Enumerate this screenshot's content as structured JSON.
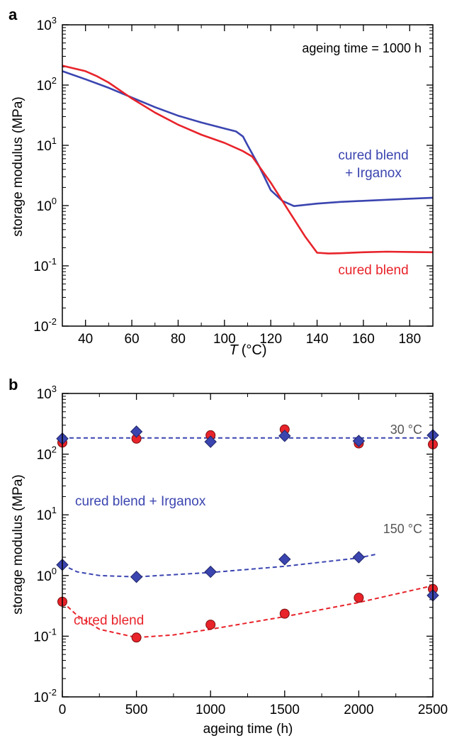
{
  "chart_data": [
    {
      "type": "line",
      "panel_label": "a",
      "xlabel_italic": "T",
      "xlabel_unit": "(°C)",
      "ylabel": "storage modulus (MPa)",
      "annotation": "ageing time = 1000 h",
      "xlim": [
        30,
        190
      ],
      "ylim": [
        0.01,
        1000
      ],
      "yscale": "log",
      "x_ticks": [
        40,
        60,
        80,
        100,
        120,
        140,
        160,
        180
      ],
      "y_ticks": [
        0.01,
        0.1,
        1,
        10,
        100,
        1000
      ],
      "y_tick_labels": [
        {
          "base": "10",
          "exp": "-2"
        },
        {
          "base": "10",
          "exp": "-1"
        },
        {
          "base": "10",
          "exp": "0"
        },
        {
          "base": "10",
          "exp": "1"
        },
        {
          "base": "10",
          "exp": "2"
        },
        {
          "base": "10",
          "exp": "3"
        }
      ],
      "series": [
        {
          "name": "cured blend\n+ Irganox",
          "label_lines": [
            "cured blend",
            "+ Irganox"
          ],
          "color": "#3b45b0",
          "x": [
            30,
            40,
            50,
            60,
            70,
            80,
            90,
            100,
            105,
            108,
            110,
            115,
            120,
            125,
            130,
            140,
            150,
            160,
            170,
            180,
            190
          ],
          "y": [
            170,
            125,
            90,
            62,
            43,
            31,
            24,
            19,
            17,
            14,
            10,
            4.5,
            1.8,
            1.2,
            0.98,
            1.08,
            1.15,
            1.2,
            1.25,
            1.3,
            1.35
          ]
        },
        {
          "name": "cured blend",
          "label_lines": [
            "cured blend"
          ],
          "color": "#e8232a",
          "x": [
            30,
            40,
            45,
            50,
            60,
            70,
            80,
            90,
            100,
            108,
            112,
            120,
            125,
            130,
            135,
            140,
            145,
            150,
            160,
            170,
            180,
            190
          ],
          "y": [
            210,
            170,
            140,
            110,
            60,
            35,
            22,
            15,
            11,
            8,
            6.5,
            2.4,
            1.2,
            0.6,
            0.3,
            0.165,
            0.16,
            0.162,
            0.168,
            0.172,
            0.17,
            0.168
          ]
        }
      ]
    },
    {
      "type": "scatter",
      "panel_label": "b",
      "xlabel": "ageing time (h)",
      "ylabel": "storage modulus (MPa)",
      "xlim": [
        0,
        2500
      ],
      "ylim": [
        0.01,
        1000
      ],
      "yscale": "log",
      "x_ticks": [
        0,
        500,
        1000,
        1500,
        2000,
        2500
      ],
      "y_ticks": [
        0.01,
        0.1,
        1,
        10,
        100,
        1000
      ],
      "y_tick_labels": [
        {
          "base": "10",
          "exp": "-2"
        },
        {
          "base": "10",
          "exp": "-1"
        },
        {
          "base": "10",
          "exp": "0"
        },
        {
          "base": "10",
          "exp": "1"
        },
        {
          "base": "10",
          "exp": "2"
        },
        {
          "base": "10",
          "exp": "3"
        }
      ],
      "temperature_labels": {
        "t30": "30 °C",
        "t150": "150 °C"
      },
      "series": [
        {
          "name": "cured blend + Irganox",
          "color": "#3b45b0",
          "marker": "diamond",
          "points_30C": [
            [
              0,
              180
            ],
            [
              500,
              235
            ],
            [
              1000,
              160
            ],
            [
              1500,
              200
            ],
            [
              2000,
              165
            ],
            [
              2500,
              205
            ]
          ],
          "points_150C": [
            [
              0,
              1.5
            ],
            [
              500,
              0.95
            ],
            [
              1000,
              1.15
            ],
            [
              1500,
              1.85
            ],
            [
              2000,
              2.0
            ],
            [
              2500,
              0.47
            ]
          ],
          "trend_30C": [
            [
              0,
              185
            ],
            [
              2500,
              185
            ]
          ],
          "trend_150C": [
            [
              0,
              1.5
            ],
            [
              100,
              1.15
            ],
            [
              250,
              1.0
            ],
            [
              500,
              0.95
            ],
            [
              800,
              1.05
            ],
            [
              1000,
              1.12
            ],
            [
              1500,
              1.42
            ],
            [
              2000,
              1.95
            ],
            [
              2120,
              2.25
            ]
          ]
        },
        {
          "name": "cured blend",
          "color": "#e8232a",
          "marker": "circle",
          "points_30C": [
            [
              0,
              155
            ],
            [
              500,
              180
            ],
            [
              1000,
              205
            ],
            [
              1500,
              255
            ],
            [
              2000,
              150
            ],
            [
              2500,
              145
            ]
          ],
          "points_150C": [
            [
              0,
              0.37
            ],
            [
              500,
              0.095
            ],
            [
              1000,
              0.155
            ],
            [
              1500,
              0.235
            ],
            [
              2000,
              0.43
            ],
            [
              2500,
              0.6
            ]
          ],
          "trend_150C": [
            [
              0,
              0.37
            ],
            [
              100,
              0.22
            ],
            [
              250,
              0.13
            ],
            [
              500,
              0.095
            ],
            [
              750,
              0.105
            ],
            [
              1000,
              0.13
            ],
            [
              1500,
              0.21
            ],
            [
              2000,
              0.36
            ],
            [
              2500,
              0.68
            ]
          ]
        }
      ]
    }
  ]
}
